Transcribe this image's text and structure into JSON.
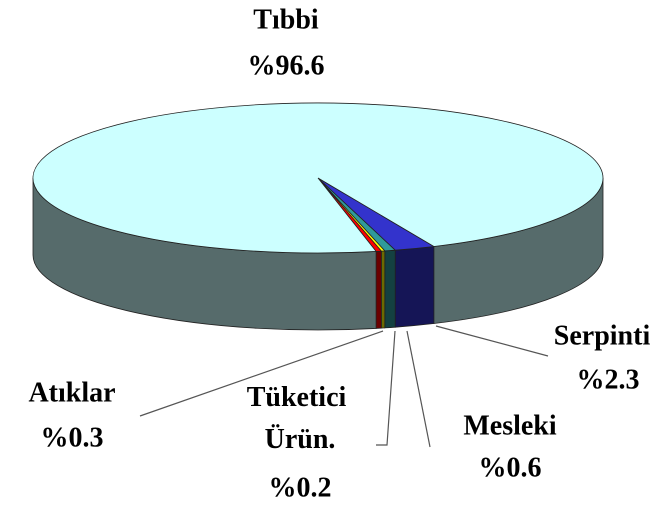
{
  "chart_data": {
    "type": "pie3d",
    "categories": [
      "Serpinti",
      "Mesleki",
      "Tüketici Ürün.",
      "Atıklar",
      "Tıbbi"
    ],
    "values": [
      2.3,
      0.6,
      0.2,
      0.3,
      96.6
    ],
    "value_labels": [
      "%2.3",
      "%0.6",
      "%0.2",
      "%0.3",
      "%96.6"
    ],
    "colors": [
      "#3333cc",
      "#2f9a9a",
      "#ffff00",
      "#ff0000",
      "#ccffff"
    ]
  }
}
